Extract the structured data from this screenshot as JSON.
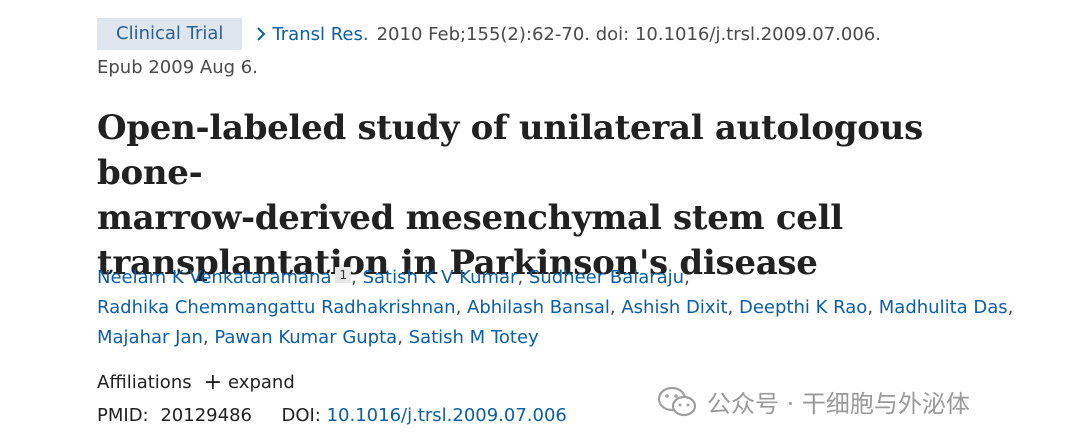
{
  "header": {
    "badge": "Clinical Trial",
    "journal": "Transl Res.",
    "citation": "2010 Feb;155(2):62-70. doi: 10.1016/j.trsl.2009.07.006.",
    "epub": "Epub 2009 Aug 6."
  },
  "title": {
    "line1": "Open-labeled study of unilateral autologous bone-",
    "line2": "marrow-derived mesenchymal stem cell",
    "line3": "transplantation in Parkinson's disease"
  },
  "authors": [
    "Neelam K Venkataramana",
    "Satish K V Kumar",
    "Sudheer Balaraju",
    "Radhika Chemmangattu Radhakrishnan",
    "Abhilash Bansal",
    "Ashish Dixit",
    "Deepthi K Rao",
    "Madhulita Das",
    "Majahar Jan",
    "Pawan Kumar Gupta",
    "Satish M Totey"
  ],
  "first_author_sup": "1",
  "affiliations": {
    "label": "Affiliations",
    "expand": "expand"
  },
  "ids": {
    "pmid_label": "PMID:",
    "pmid": "20129486",
    "doi_label": "DOI:",
    "doi": "10.1016/j.trsl.2009.07.006"
  },
  "watermark": "公众号 · 干细胞与外泌体",
  "colors": {
    "link": "#0b5fa8",
    "badge_bg": "#dfe6f0",
    "text": "#212121"
  }
}
